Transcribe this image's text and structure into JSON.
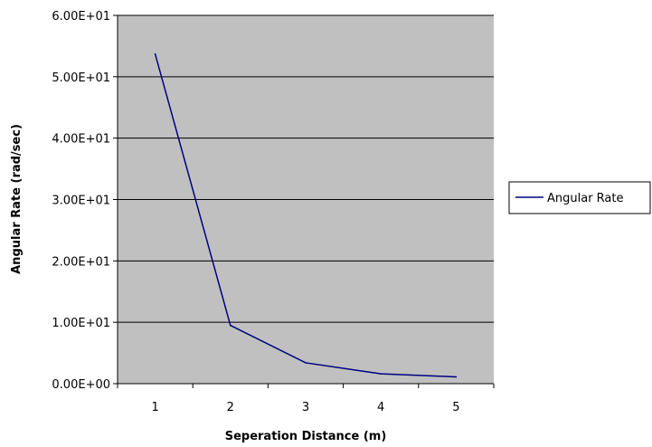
{
  "chart_data": {
    "type": "line",
    "x": [
      1,
      2,
      3,
      4,
      5
    ],
    "categories": [
      "1",
      "2",
      "3",
      "4",
      "5"
    ],
    "series": [
      {
        "name": "Angular Rate",
        "values": [
          53.7,
          9.5,
          3.4,
          1.6,
          1.1
        ]
      }
    ],
    "xlabel": "Seperation Distance (m)",
    "ylabel": "Angular Rate (rad/sec)",
    "ylim": [
      0,
      60
    ],
    "yticks": [
      "0.00E+00",
      "1.00E+01",
      "2.00E+01",
      "3.00E+01",
      "4.00E+01",
      "5.00E+01",
      "6.00E+01"
    ],
    "grid": "horizontal",
    "legend_position": "right",
    "colors": {
      "plot_background": "#c0c0c0",
      "series_line": "#000080",
      "gridline": "#000000"
    }
  }
}
